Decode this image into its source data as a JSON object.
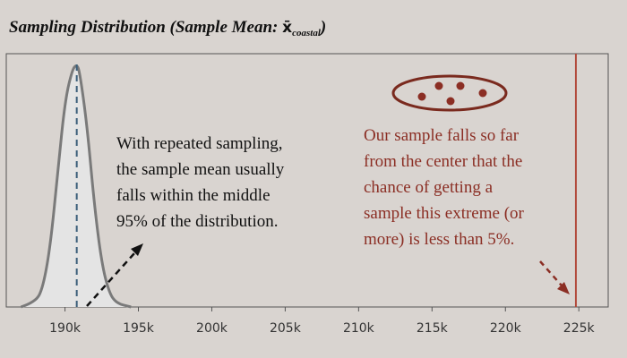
{
  "title": {
    "prefix": "Sampling Distribution (Sample Mean: ",
    "symbol": "x̄",
    "subscript": "coastal",
    "suffix": ")"
  },
  "chart_data": {
    "type": "area",
    "title": "Sampling Distribution (Sample Mean: x̄coastal)",
    "xlabel": "",
    "ylabel": "",
    "xlim": [
      186000,
      227000
    ],
    "xticks": [
      190000,
      195000,
      200000,
      205000,
      210000,
      215000,
      220000,
      225000
    ],
    "tick_labels": [
      "190k",
      "195k",
      "200k",
      "205k",
      "210k",
      "215k",
      "220k",
      "225k"
    ],
    "grid": false,
    "distribution": {
      "mean": 190800,
      "x": [
        187000,
        188000,
        188500,
        189000,
        189500,
        190000,
        190500,
        190800,
        191000,
        191500,
        192000,
        192500,
        193000,
        193500,
        194500
      ],
      "density": [
        0.0,
        0.02,
        0.08,
        0.25,
        0.55,
        0.85,
        0.98,
        1.0,
        0.97,
        0.75,
        0.42,
        0.18,
        0.06,
        0.015,
        0.0
      ]
    },
    "mean_line_x": 190800,
    "observed_line_x": 224800,
    "colors": {
      "curve": "#7a7a7a",
      "fill": "#e4e4e4",
      "mean_line": "#3b5f7a",
      "observed_line": "#b24a3c",
      "annotation_left": "#111111",
      "annotation_right": "#8b2e24",
      "ellipse": "#7a2a1e"
    },
    "annotations": {
      "left": [
        "With repeated sampling,",
        "the sample mean usually",
        "falls within the middle",
        "95% of the distribution."
      ],
      "right": [
        "Our sample falls so far",
        "from the center that the",
        "chance of getting a",
        "sample this extreme (or",
        "more) is less than 5%."
      ]
    }
  }
}
